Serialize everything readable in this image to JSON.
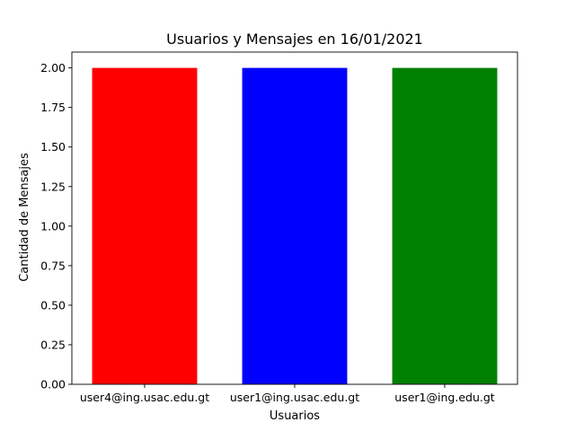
{
  "chart_data": {
    "type": "bar",
    "title": "Usuarios y Mensajes en 16/01/2021",
    "xlabel": "Usuarios",
    "ylabel": "Cantidad de Mensajes",
    "categories": [
      "user4@ing.usac.edu.gt",
      "user1@ing.usac.edu.gt",
      "user1@ing.edu.gt"
    ],
    "values": [
      2,
      2,
      2
    ],
    "colors": [
      "#ff0000",
      "#0000ff",
      "#008000"
    ],
    "ylim": [
      0,
      2.1
    ],
    "yticks": [
      0,
      0.25,
      0.5,
      0.75,
      1.0,
      1.25,
      1.5,
      1.75,
      2.0
    ],
    "ytick_labels": [
      "0.00",
      "0.25",
      "0.50",
      "0.75",
      "1.00",
      "1.25",
      "1.50",
      "1.75",
      "2.00"
    ],
    "grid": false,
    "legend": "none"
  }
}
